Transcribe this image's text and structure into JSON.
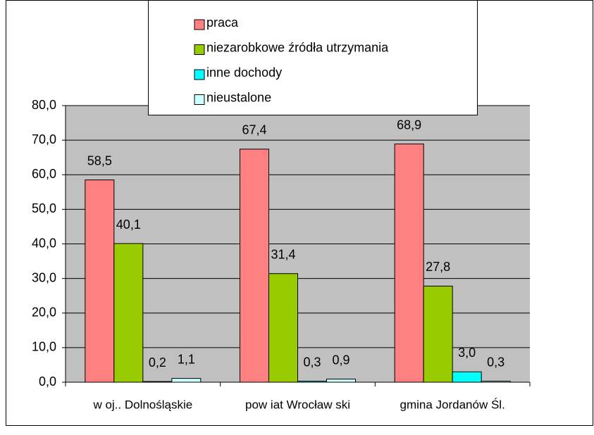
{
  "chart_data": {
    "type": "bar",
    "categories": [
      "w oj.. Dolnośląskie",
      "pow iat Wrocław ski",
      "gmina Jordanów Śl."
    ],
    "series": [
      {
        "name": "praca",
        "color": "#ff8080",
        "values": [
          58.5,
          67.4,
          68.9
        ],
        "value_labels": [
          "58,5",
          "67,4",
          "68,9"
        ]
      },
      {
        "name": "niezarobkowe źródła utrzymania",
        "color": "#99cc00",
        "values": [
          40.1,
          31.4,
          27.8
        ],
        "value_labels": [
          "40,1",
          "31,4",
          "27,8"
        ]
      },
      {
        "name": "inne dochody",
        "color": "#00ffff",
        "values": [
          0.2,
          0.3,
          3.0
        ],
        "value_labels": [
          "0,2",
          "0,3",
          "3,0"
        ]
      },
      {
        "name": "nieustalone",
        "color": "#ccffff",
        "values": [
          1.1,
          0.9,
          0.3
        ],
        "value_labels": [
          "1,1",
          "0,9",
          "0,3"
        ]
      }
    ],
    "ylim": [
      0,
      80
    ],
    "yticks": [
      {
        "value": 0,
        "label": "0,0"
      },
      {
        "value": 10,
        "label": "10,0"
      },
      {
        "value": 20,
        "label": "20,0"
      },
      {
        "value": 30,
        "label": "30,0"
      },
      {
        "value": 40,
        "label": "40,0"
      },
      {
        "value": 50,
        "label": "50,0"
      },
      {
        "value": 60,
        "label": "60,0"
      },
      {
        "value": 70,
        "label": "70,0"
      },
      {
        "value": 80,
        "label": "80,0"
      }
    ],
    "grid": true,
    "legend": "top"
  }
}
